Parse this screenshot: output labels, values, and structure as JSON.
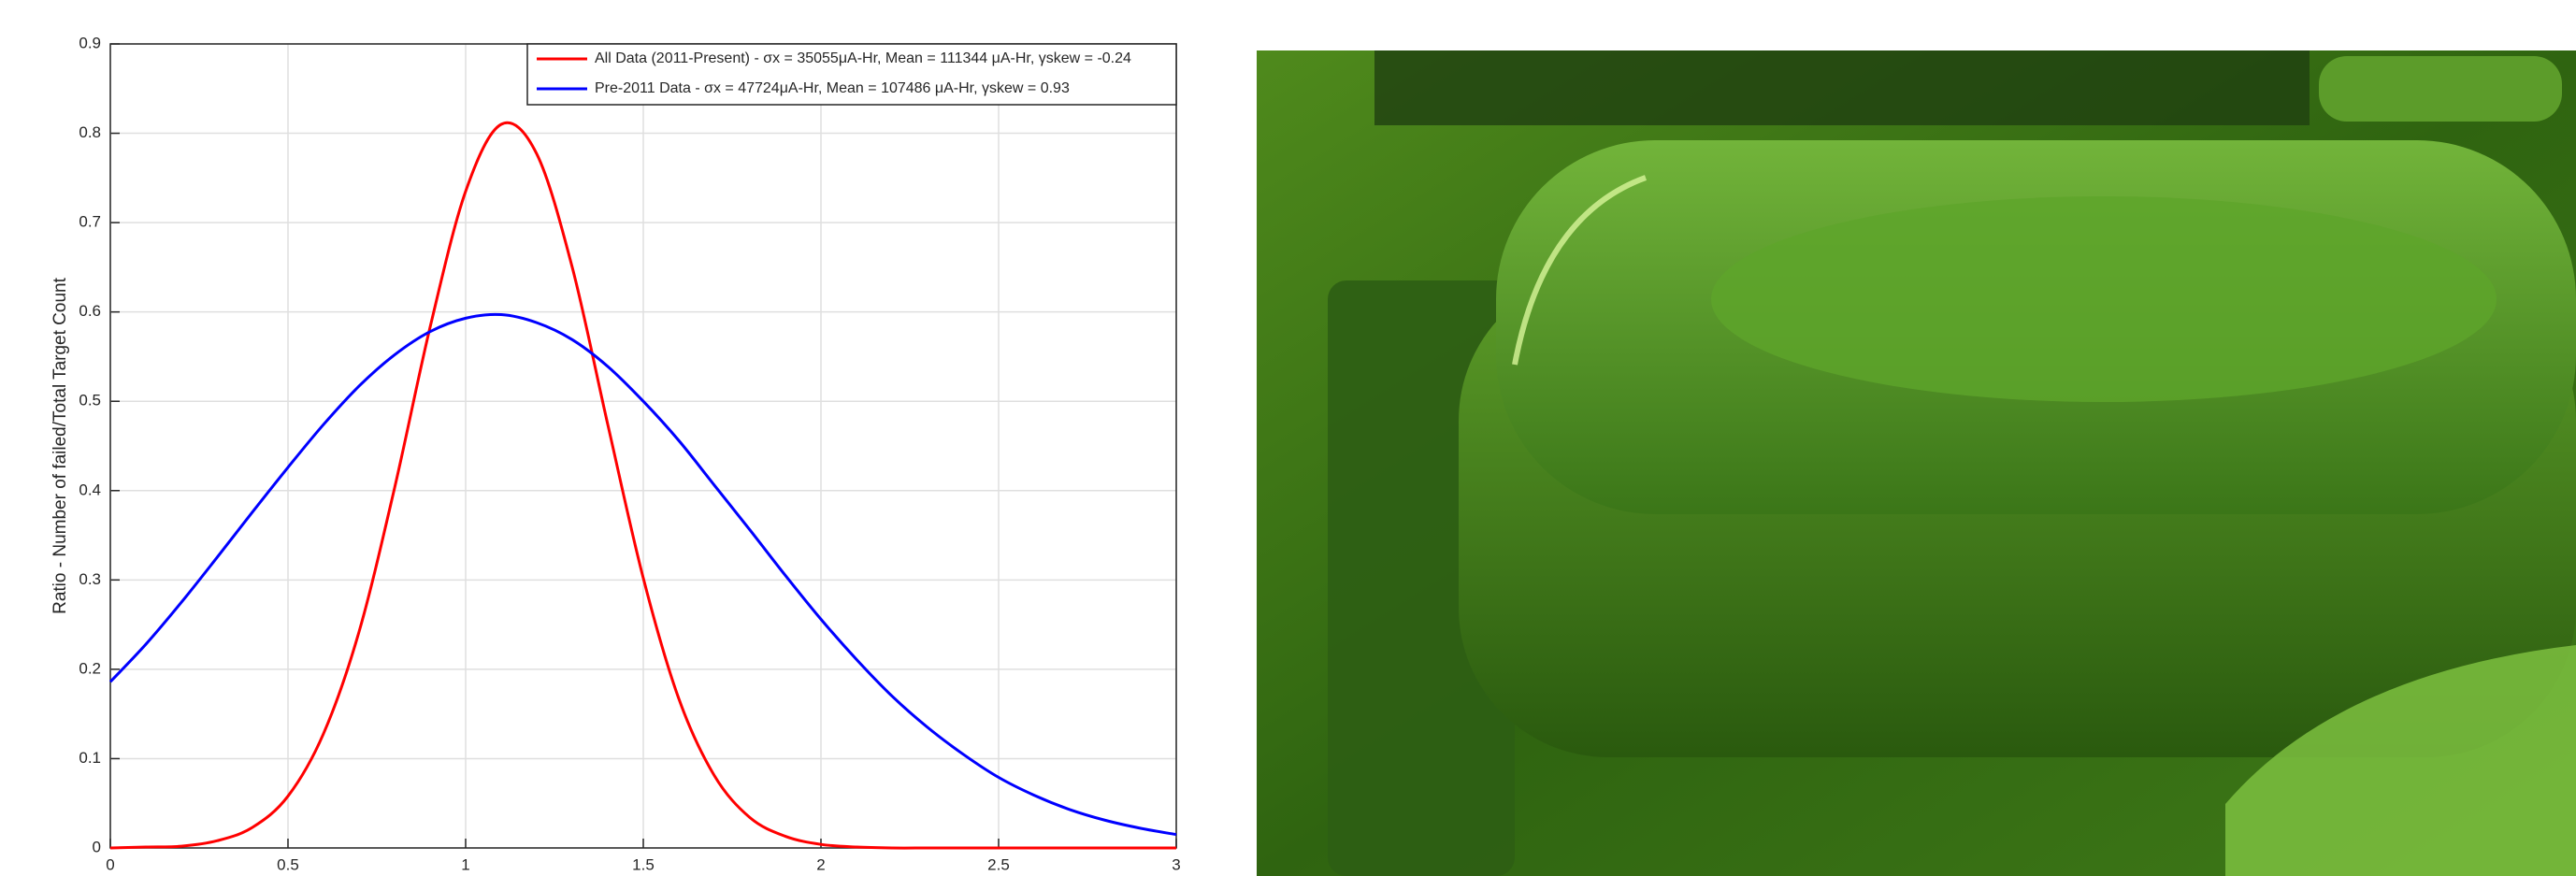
{
  "chart_data": {
    "type": "line",
    "y_label": "Ratio - Number of failed/Total Target Count",
    "x": [
      0,
      0.1,
      0.2,
      0.3,
      0.4,
      0.5,
      0.6,
      0.7,
      0.8,
      0.9,
      1.0,
      1.1,
      1.2,
      1.3,
      1.4,
      1.5,
      1.6,
      1.7,
      1.8,
      1.9,
      2.0,
      2.1,
      2.2,
      2.3,
      2.4,
      2.5,
      2.6,
      2.7,
      2.8,
      2.9,
      3.0
    ],
    "series": [
      {
        "name": "All Data (2011-Present) - σx = 35055μA-Hr, Mean = 111344 μA-Hr, γskew = -0.24",
        "color": "#ff0000",
        "values": [
          0.0,
          0.001,
          0.002,
          0.008,
          0.023,
          0.058,
          0.128,
          0.242,
          0.403,
          0.583,
          0.735,
          0.81,
          0.777,
          0.65,
          0.474,
          0.302,
          0.167,
          0.081,
          0.034,
          0.013,
          0.004,
          0.001,
          0,
          0,
          0,
          0,
          0,
          0,
          0,
          0,
          0
        ]
      },
      {
        "name": "Pre-2011 Data - σx = 47724μA-Hr, Mean = 107486 μA-Hr, γskew = 0.93",
        "color": "#0000ff",
        "values": [
          0.186,
          0.228,
          0.275,
          0.325,
          0.376,
          0.426,
          0.474,
          0.517,
          0.552,
          0.578,
          0.593,
          0.597,
          0.588,
          0.569,
          0.539,
          0.5,
          0.456,
          0.406,
          0.356,
          0.305,
          0.256,
          0.211,
          0.17,
          0.135,
          0.105,
          0.079,
          0.059,
          0.043,
          0.031,
          0.022,
          0.015
        ]
      }
    ],
    "xlim": [
      0,
      3
    ],
    "xticks": [
      0,
      0.5,
      1,
      1.5,
      2,
      2.5,
      3
    ],
    "ylim": [
      0,
      0.9
    ],
    "yticks": [
      0,
      0.1,
      0.2,
      0.3,
      0.4,
      0.5,
      0.6,
      0.7,
      0.8,
      0.9
    ],
    "grid": true,
    "legend": "top-right"
  }
}
